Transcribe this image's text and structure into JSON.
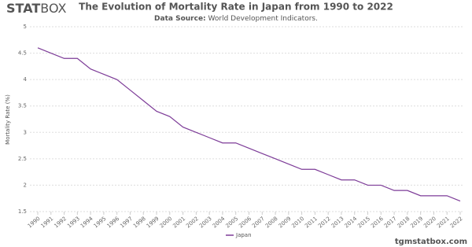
{
  "branding": {
    "logo_bold": "STAT",
    "logo_light": "BOX",
    "site": "tgmstatbox.com"
  },
  "chart_data": {
    "type": "line",
    "title": "The Evolution of Mortality Rate in Japan from 1990 to 2022",
    "subtitle_label": "Data Source:",
    "subtitle": "World Development Indicators.",
    "y_label": "Mortality Rate (%)",
    "x": [
      1990,
      1991,
      1992,
      1993,
      1994,
      1995,
      1996,
      1997,
      1998,
      1999,
      2000,
      2001,
      2002,
      2003,
      2004,
      2005,
      2006,
      2007,
      2008,
      2009,
      2010,
      2011,
      2012,
      2013,
      2014,
      2015,
      2016,
      2017,
      2018,
      2019,
      2020,
      2021,
      2022
    ],
    "xlim": [
      1990,
      2022
    ],
    "xticks": [
      1990,
      1991,
      1992,
      1993,
      1994,
      1995,
      1996,
      1997,
      1998,
      1999,
      2000,
      2001,
      2002,
      2003,
      2004,
      2005,
      2006,
      2007,
      2008,
      2009,
      2010,
      2011,
      2012,
      2013,
      2014,
      2015,
      2016,
      2017,
      2018,
      2019,
      2020,
      2021,
      2022
    ],
    "series": [
      {
        "name": "Japan",
        "color": "#7d3c98",
        "values": [
          4.6,
          4.5,
          4.4,
          4.4,
          4.2,
          4.1,
          4.0,
          3.8,
          3.6,
          3.4,
          3.3,
          3.1,
          3.0,
          2.9,
          2.8,
          2.8,
          2.7,
          2.6,
          2.5,
          2.4,
          2.3,
          2.3,
          2.2,
          2.1,
          2.1,
          2.0,
          2.0,
          1.9,
          1.9,
          1.8,
          1.8,
          1.8,
          1.7
        ]
      }
    ],
    "ylim": [
      1.5,
      5
    ],
    "yticks": [
      1.5,
      2,
      2.5,
      3,
      3.5,
      4,
      4.5,
      5
    ],
    "grid": true,
    "legend": "bottom"
  }
}
